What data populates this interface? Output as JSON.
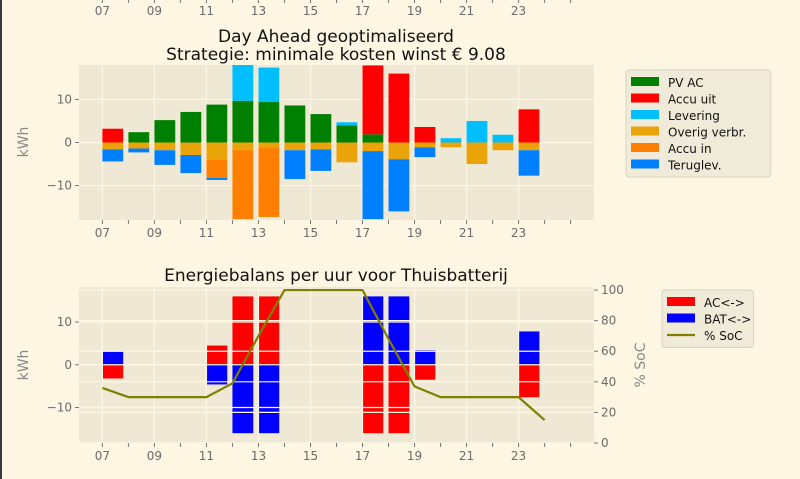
{
  "colors": {
    "background": "#fdf6e3",
    "axes_background": "#eee8d5",
    "grid": "#fdf6e3"
  },
  "top_strip": {
    "tick_labels": [
      "07",
      "09",
      "11",
      "13",
      "15",
      "17",
      "19",
      "21",
      "23"
    ]
  },
  "chart_data": [
    {
      "type": "bar",
      "stacked": true,
      "title": "Day Ahead geoptimaliseerd\nStrategie: minimale kosten winst € 9.08",
      "title_lines": [
        "Day Ahead geoptimaliseerd",
        "Strategie: minimale kosten winst € 9.08"
      ],
      "ylabel": "kWh",
      "xlabel": "",
      "x": [
        7,
        8,
        9,
        10,
        11,
        12,
        13,
        14,
        15,
        16,
        17,
        18,
        19,
        20,
        21,
        22,
        23
      ],
      "xticks": [
        7,
        9,
        11,
        13,
        15,
        17,
        19,
        21,
        23
      ],
      "xtick_labels": [
        "07",
        "09",
        "11",
        "13",
        "15",
        "17",
        "19",
        "21",
        "23"
      ],
      "xlim": [
        6.1,
        25.9
      ],
      "ylim": [
        -18,
        18
      ],
      "yticks": [
        -10,
        0,
        10
      ],
      "ytick_labels": [
        "−10",
        "0",
        "10"
      ],
      "grid": true,
      "legend_position": "outside-right",
      "series": [
        {
          "name": "PV AC",
          "color": "#008000",
          "values": [
            0,
            2.4,
            5.2,
            7.1,
            8.8,
            9.7,
            9.4,
            8.6,
            6.6,
            4.0,
            1.9,
            0,
            0,
            0,
            0,
            0,
            0
          ]
        },
        {
          "name": "Accu uit",
          "color": "#ff0000",
          "values": [
            3.2,
            0,
            0,
            0,
            0,
            0,
            0,
            0,
            0,
            0,
            16,
            16,
            3.6,
            0,
            0,
            0,
            7.7
          ]
        },
        {
          "name": "Levering",
          "color": "#00bfff",
          "values": [
            0,
            0,
            0,
            0,
            0,
            8.5,
            8.0,
            0,
            0,
            0.7,
            0,
            0,
            0,
            1.0,
            5.0,
            1.8,
            0
          ]
        },
        {
          "name": "Overig verbr.",
          "color": "#eaa40a",
          "values": [
            -1.6,
            -1.4,
            -1.8,
            -2.9,
            -3.9,
            -1.7,
            -1.1,
            -1.8,
            -1.6,
            -4.6,
            -2.0,
            -3.9,
            -1.1,
            -1.1,
            -5.0,
            -1.8,
            -1.8
          ]
        },
        {
          "name": "Accu in",
          "color": "#ff8000",
          "values": [
            0,
            0,
            0,
            0,
            -4.3,
            -16.1,
            -16.2,
            0,
            0,
            0,
            0,
            0,
            0,
            0,
            0,
            0,
            0
          ]
        },
        {
          "name": "Teruglev.",
          "color": "#0080ff",
          "values": [
            -2.8,
            -0.9,
            -3.4,
            -4.2,
            -0.5,
            0,
            0,
            -6.7,
            -5.0,
            0,
            -15.8,
            -12.1,
            -2.3,
            0,
            0,
            0,
            -5.9
          ]
        }
      ]
    },
    {
      "type": "bar",
      "stacked": true,
      "title": "Energiebalans per uur voor Thuisbatterij",
      "ylabel": "kWh",
      "y2label": "% SoC",
      "xlabel": "",
      "x": [
        7,
        8,
        9,
        10,
        11,
        12,
        13,
        14,
        15,
        16,
        17,
        18,
        19,
        20,
        21,
        22,
        23
      ],
      "xticks": [
        7,
        9,
        11,
        13,
        15,
        17,
        19,
        21,
        23
      ],
      "xtick_labels": [
        "07",
        "09",
        "11",
        "13",
        "15",
        "17",
        "19",
        "21",
        "23"
      ],
      "xlim": [
        6.1,
        25.9
      ],
      "ylim": [
        -18.3,
        18.2
      ],
      "yticks": [
        -10,
        0,
        10
      ],
      "ytick_labels": [
        "−10",
        "0",
        "10"
      ],
      "y2lim": [
        0,
        102
      ],
      "y2ticks": [
        0,
        20,
        40,
        60,
        80,
        100
      ],
      "y2tick_labels": [
        "0",
        "20",
        "40",
        "60",
        "80",
        "100"
      ],
      "grid": true,
      "legend_position": "outside-right",
      "series": [
        {
          "name": "AC<->",
          "color": "#ff0000",
          "values": [
            -3.2,
            0,
            0,
            0,
            4.5,
            16,
            16,
            0,
            0,
            0,
            -16,
            -16,
            -3.5,
            0,
            0,
            0,
            -7.6
          ]
        },
        {
          "name": "BAT<->",
          "color": "#0000ff",
          "values": [
            3.2,
            0,
            0,
            0,
            -4.6,
            -16,
            -16,
            0,
            0,
            0,
            16,
            16,
            3.4,
            0,
            0,
            0,
            7.8
          ]
        }
      ],
      "line_series": {
        "name": "% SoC",
        "color": "#808000",
        "axis": "right",
        "x": [
          7,
          8,
          9,
          10,
          11,
          12,
          13,
          14,
          15,
          16,
          17,
          18,
          19,
          20,
          21,
          22,
          23,
          24
        ],
        "values": [
          36,
          30,
          30,
          30,
          30,
          39,
          70,
          100,
          100,
          100,
          100,
          68,
          37,
          30,
          30,
          30,
          30,
          15
        ]
      }
    }
  ]
}
